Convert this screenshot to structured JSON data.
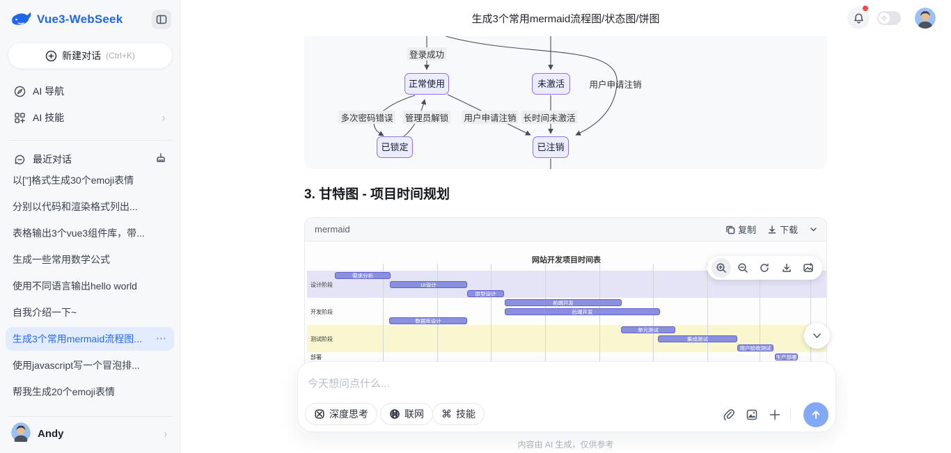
{
  "sidebar": {
    "logo_text": "Vue3-WebSeek",
    "new_chat": {
      "label": "新建对话",
      "shortcut": "(Ctrl+K)"
    },
    "nav": [
      {
        "label": "AI 导航"
      },
      {
        "label": "AI 技能"
      }
    ],
    "recent": {
      "title": "最近对话",
      "items": [
        {
          "label": "以['']格式生成30个emoji表情"
        },
        {
          "label": "分别以代码和渲染格式列出..."
        },
        {
          "label": "表格输出3个vue3组件库，带..."
        },
        {
          "label": "生成一些常用数学公式"
        },
        {
          "label": "使用不同语言输出hello world"
        },
        {
          "label": "自我介绍一下~"
        },
        {
          "label": "生成3个常用mermaid流程图...",
          "active": true
        },
        {
          "label": "使用javascript写一个冒泡排..."
        },
        {
          "label": "帮我生成20个emoji表情"
        }
      ]
    },
    "user": {
      "name": "Andy"
    }
  },
  "header": {
    "title": "生成3个常用mermaid流程图/状态图/饼图"
  },
  "state_diagram": {
    "nodes": [
      {
        "label": "正常使用"
      },
      {
        "label": "未激活"
      },
      {
        "label": "已锁定"
      },
      {
        "label": "已注销"
      }
    ],
    "edges": [
      {
        "label": "登录成功"
      },
      {
        "label": "用户申请注销"
      },
      {
        "label": "多次密码错误"
      },
      {
        "label": "管理员解锁"
      },
      {
        "label": "用户申请注销"
      },
      {
        "label": "长时间未激活"
      }
    ]
  },
  "content": {
    "section_heading": "3. 甘特图 - 项目时间规划"
  },
  "code_block": {
    "language": "mermaid",
    "copy_label": "复制",
    "download_label": "下载"
  },
  "chart_data": {
    "type": "gantt",
    "title": "网站开发项目时间表",
    "x_axis": {
      "tick_labels_visible": false,
      "gridline_count": 9
    },
    "sections": [
      {
        "name": "设计阶段",
        "band_color": "#e5e3f6",
        "tasks": [
          {
            "name": "需求分析",
            "start_pct": 4.2,
            "end_pct": 15.4
          },
          {
            "name": "UI设计",
            "start_pct": 15.3,
            "end_pct": 30.9
          },
          {
            "name": "原型设计",
            "start_pct": 30.9,
            "end_pct": 38.3
          }
        ]
      },
      {
        "name": "开发阶段",
        "band_color": "transparent",
        "tasks": [
          {
            "name": "前端开发",
            "start_pct": 38.4,
            "end_pct": 62.0
          },
          {
            "name": "后端开发",
            "start_pct": 38.4,
            "end_pct": 69.7
          },
          {
            "name": "数据库设计",
            "start_pct": 15.1,
            "end_pct": 30.8
          }
        ]
      },
      {
        "name": "测试阶段",
        "band_color": "#f9f6d0",
        "tasks": [
          {
            "name": "单元测试",
            "start_pct": 61.9,
            "end_pct": 72.9
          },
          {
            "name": "集成测试",
            "start_pct": 69.3,
            "end_pct": 85.3
          },
          {
            "name": "用户验收测试",
            "start_pct": 85.3,
            "end_pct": 92.6
          }
        ]
      },
      {
        "name": "部署",
        "band_color": "transparent",
        "tasks": [
          {
            "name": "生产部署",
            "start_pct": 92.8,
            "end_pct": 97.4
          }
        ]
      }
    ],
    "colors": {
      "bar_fill": "#8a90dd",
      "bar_border": "#5c61c6"
    }
  },
  "composer": {
    "placeholder": "今天想问点什么...",
    "tools": [
      {
        "label": "深度思考"
      },
      {
        "label": "联网"
      },
      {
        "label": "技能"
      }
    ]
  },
  "footer": {
    "disclaimer": "内容由 AI 生成，仅供参考"
  },
  "glyphs": {
    "more": "⋯",
    "command": "⌘",
    "chevron_right": "›"
  }
}
